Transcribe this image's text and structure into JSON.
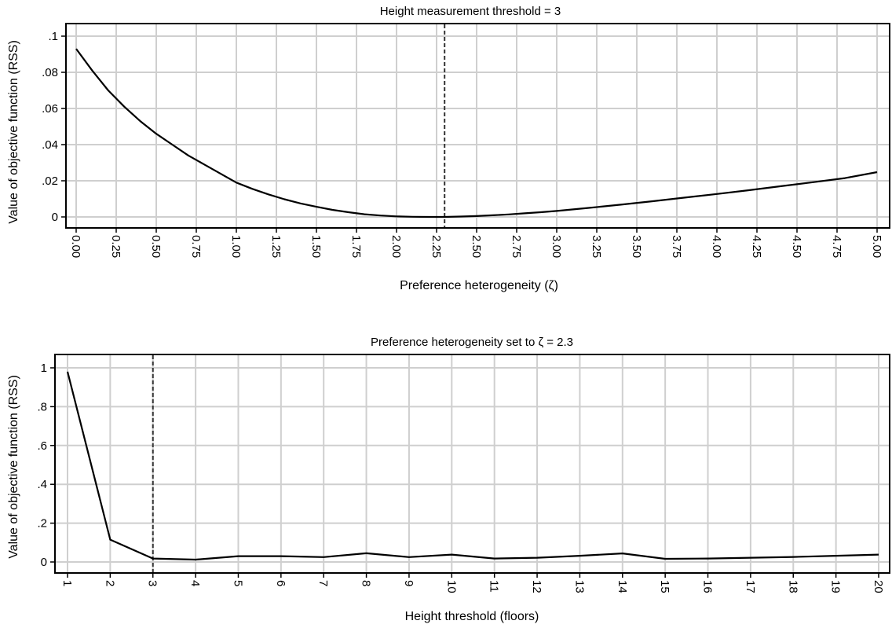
{
  "chart_data": [
    {
      "type": "line",
      "title": "Height measurement threshold = 3",
      "xlabel": "Preference heterogeneity (ζ)",
      "ylabel": "Value of objective function (RSS)",
      "xlim": [
        0,
        5
      ],
      "ylim": [
        0,
        0.1
      ],
      "grid": true,
      "x_ticks": [
        0,
        0.25,
        0.5,
        0.75,
        1,
        1.25,
        1.5,
        1.75,
        2,
        2.25,
        2.5,
        2.75,
        3,
        3.25,
        3.5,
        3.75,
        4,
        4.25,
        4.5,
        4.75,
        5
      ],
      "x_tick_labels": [
        "0.00",
        "0.25",
        "0.50",
        "0.75",
        "1.00",
        "1.25",
        "1.50",
        "1.75",
        "2.00",
        "2.25",
        "2.50",
        "2.75",
        "3.00",
        "3.25",
        "3.50",
        "3.75",
        "4.00",
        "4.25",
        "4.50",
        "4.75",
        "5.00"
      ],
      "y_ticks": [
        0,
        0.02,
        0.04,
        0.06,
        0.08,
        0.1
      ],
      "y_tick_labels": [
        "0",
        ".02",
        ".04",
        ".06",
        ".08",
        ".1"
      ],
      "reference_line_x": 2.3,
      "series": [
        {
          "x": [
            0,
            0.1,
            0.2,
            0.3,
            0.4,
            0.5,
            0.6,
            0.7,
            0.8,
            0.9,
            1.0,
            1.1,
            1.2,
            1.3,
            1.4,
            1.5,
            1.6,
            1.7,
            1.8,
            1.9,
            2.0,
            2.1,
            2.2,
            2.3,
            2.4,
            2.5,
            2.6,
            2.7,
            2.8,
            2.9,
            3.0,
            3.2,
            3.4,
            3.6,
            3.8,
            4.0,
            4.2,
            4.4,
            4.6,
            4.8,
            5.0
          ],
          "y": [
            0.093,
            0.081,
            0.07,
            0.061,
            0.053,
            0.046,
            0.04,
            0.034,
            0.029,
            0.024,
            0.019,
            0.0155,
            0.0125,
            0.0098,
            0.0075,
            0.0056,
            0.0039,
            0.0026,
            0.0015,
            0.0008,
            0.0003,
            0.0001,
            0.0,
            0.0,
            0.0002,
            0.0005,
            0.0009,
            0.0014,
            0.002,
            0.0026,
            0.0033,
            0.005,
            0.0068,
            0.0087,
            0.0107,
            0.0127,
            0.0148,
            0.017,
            0.0192,
            0.0215,
            0.0248
          ]
        }
      ]
    },
    {
      "type": "line",
      "title": "Preference heterogeneity set to ζ = 2.3",
      "xlabel": "Height threshold (floors)",
      "ylabel": "Value of objective function (RSS)",
      "xlim": [
        1,
        20
      ],
      "ylim": [
        0,
        1
      ],
      "grid": true,
      "x_ticks": [
        1,
        2,
        3,
        4,
        5,
        6,
        7,
        8,
        9,
        10,
        11,
        12,
        13,
        14,
        15,
        16,
        17,
        18,
        19,
        20
      ],
      "x_tick_labels": [
        "1",
        "2",
        "3",
        "4",
        "5",
        "6",
        "7",
        "8",
        "9",
        "10",
        "11",
        "12",
        "13",
        "14",
        "15",
        "16",
        "17",
        "18",
        "19",
        "20"
      ],
      "y_ticks": [
        0,
        0.2,
        0.4,
        0.6,
        0.8,
        1
      ],
      "y_tick_labels": [
        "0",
        ".2",
        ".4",
        ".6",
        ".8",
        "1"
      ],
      "reference_line_x": 3,
      "series": [
        {
          "x": [
            1,
            2,
            3,
            4,
            5,
            6,
            7,
            8,
            9,
            10,
            11,
            12,
            13,
            14,
            15,
            16,
            17,
            18,
            19,
            20
          ],
          "y": [
            0.98,
            0.115,
            0.018,
            0.012,
            0.03,
            0.03,
            0.025,
            0.045,
            0.025,
            0.038,
            0.018,
            0.022,
            0.032,
            0.044,
            0.016,
            0.018,
            0.022,
            0.026,
            0.032,
            0.038
          ]
        }
      ]
    }
  ]
}
